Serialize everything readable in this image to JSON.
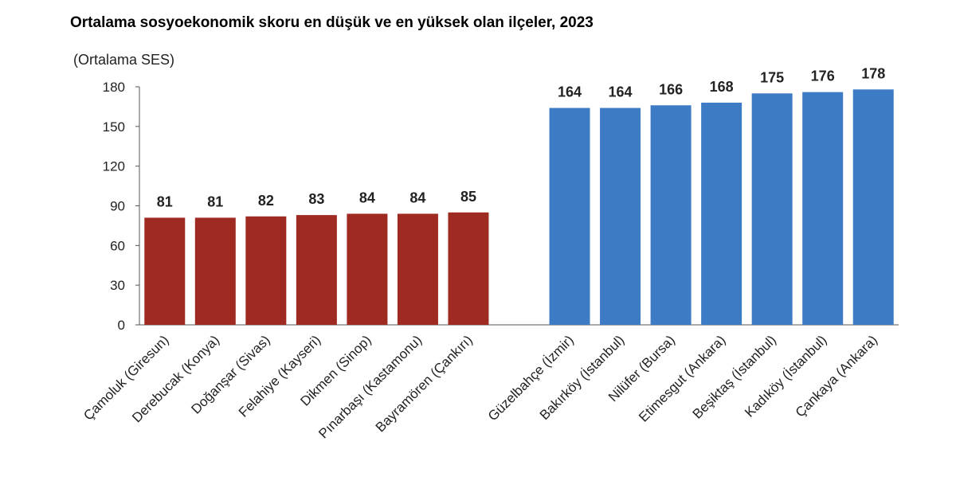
{
  "chart_data": {
    "type": "bar",
    "title": "Ortalama sosyoekonomik skoru en düşük ve en yüksek olan ilçeler, 2023",
    "ylabel": "(Ortalama SES)",
    "xlabel": "",
    "ylim": [
      0,
      180
    ],
    "yticks": [
      0,
      30,
      60,
      90,
      120,
      150,
      180
    ],
    "grid": false,
    "groups": [
      {
        "color": "#9e2a22",
        "categories": [
          "Çamoluk (Giresun)",
          "Derebucak (Konya)",
          "Doğanşar (Sivas)",
          "Felahiye (Kayseri)",
          "Dikmen (Sinop)",
          "Pınarbaşı (Kastamonu)",
          "Bayramören (Çankırı)"
        ],
        "values": [
          81,
          81,
          82,
          83,
          84,
          84,
          85
        ]
      },
      {
        "color": "#3d7cc4",
        "categories": [
          "Güzelbahçe (İzmir)",
          "Bakırköy (İstanbul)",
          "Nilüfer (Bursa)",
          "Etimesgut (Ankara)",
          "Beşiktaş (İstanbul)",
          "Kadıköy (İstanbul)",
          "Çankaya (Ankara)"
        ],
        "values": [
          164,
          164,
          166,
          168,
          175,
          176,
          178
        ]
      }
    ]
  }
}
